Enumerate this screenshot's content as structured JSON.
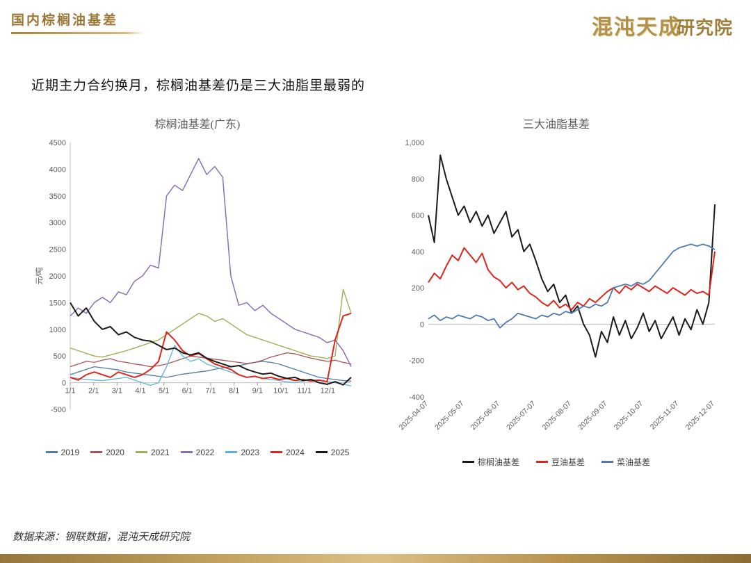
{
  "header": {
    "title": "国内棕榈油基差",
    "logo_main": "混沌天成",
    "logo_sub": "研究院"
  },
  "subtitle": "近期主力合约换月，棕榈油基差仍是三大油脂里最弱的",
  "footer": {
    "source": "数据来源：钢联数据，混沌天成研究院"
  },
  "chart_data": [
    {
      "type": "line",
      "title": "棕榈油基差(广东)",
      "ylabel": "元/吨",
      "ylim": [
        -500,
        4500
      ],
      "ytick_step": 500,
      "comma": false,
      "grid": false,
      "y_axis_line": true,
      "rotate_labels": false,
      "label_span": 0.9167,
      "legend_position": "bottom",
      "x_labels": [
        "1/1",
        "2/1",
        "3/1",
        "4/1",
        "5/1",
        "6/1",
        "7/1",
        "8/1",
        "9/1",
        "10/1",
        "11/1",
        "12/1"
      ],
      "series": [
        {
          "name": "2019",
          "color": "#4f7aa6",
          "width": 1.3,
          "values": [
            150,
            200,
            250,
            300,
            280,
            260,
            240,
            200,
            180,
            160,
            140,
            120,
            100,
            130,
            160,
            180,
            200,
            220,
            250,
            280,
            300,
            320,
            350,
            380,
            400,
            380,
            350,
            300,
            250,
            200,
            150,
            100,
            80,
            60,
            40,
            30
          ]
        },
        {
          "name": "2020",
          "color": "#a85454",
          "width": 1.3,
          "values": [
            300,
            350,
            400,
            380,
            420,
            450,
            400,
            380,
            350,
            330,
            300,
            320,
            350,
            400,
            450,
            500,
            480,
            460,
            440,
            420,
            400,
            380,
            360,
            380,
            420,
            480,
            520,
            560,
            540,
            500,
            460,
            430,
            400,
            420,
            380,
            350
          ]
        },
        {
          "name": "2021",
          "color": "#9fae52",
          "width": 1.4,
          "values": [
            650,
            600,
            550,
            500,
            480,
            520,
            560,
            600,
            650,
            700,
            750,
            800,
            900,
            1000,
            1100,
            1200,
            1300,
            1250,
            1150,
            1200,
            1100,
            1000,
            900,
            850,
            800,
            750,
            700,
            650,
            600,
            550,
            500,
            480,
            450,
            500,
            1750,
            1300
          ]
        },
        {
          "name": "2022",
          "color": "#8b6fb3",
          "width": 1.5,
          "values": [
            1250,
            1400,
            1300,
            1500,
            1600,
            1500,
            1700,
            1650,
            1900,
            2000,
            2200,
            2150,
            3500,
            3700,
            3600,
            3900,
            4200,
            3900,
            4050,
            3850,
            2000,
            1450,
            1500,
            1350,
            1450,
            1300,
            1200,
            1100,
            1000,
            950,
            900,
            850,
            750,
            800,
            600,
            300
          ]
        },
        {
          "name": "2023",
          "color": "#5ab4d6",
          "width": 1.3,
          "values": [
            100,
            80,
            60,
            50,
            40,
            60,
            80,
            100,
            50,
            0,
            -50,
            0,
            300,
            700,
            500,
            400,
            450,
            350,
            300,
            250,
            200,
            150,
            100,
            120,
            80,
            60,
            40,
            20,
            0,
            30,
            60,
            40,
            20,
            0,
            -30,
            -60
          ]
        },
        {
          "name": "2024",
          "color": "#e0241c",
          "width": 2,
          "values": [
            100,
            50,
            150,
            200,
            150,
            100,
            200,
            150,
            100,
            150,
            250,
            400,
            950,
            800,
            600,
            500,
            550,
            450,
            350,
            300,
            250,
            150,
            100,
            120,
            80,
            100,
            60,
            80,
            40,
            60,
            30,
            50,
            20,
            800,
            1250,
            1300
          ]
        },
        {
          "name": "2025",
          "color": "#1a1a1a",
          "width": 2,
          "values": [
            1500,
            1250,
            1400,
            1150,
            1000,
            1050,
            900,
            950,
            850,
            800,
            780,
            700,
            620,
            650,
            560,
            520,
            560,
            460,
            400,
            350,
            300,
            320,
            250,
            200,
            160,
            180,
            120,
            80,
            100,
            40,
            60,
            0,
            -30,
            20,
            -40,
            100
          ]
        }
      ]
    },
    {
      "type": "line",
      "title": "三大油脂基差",
      "ylabel": "",
      "ylim": [
        -400,
        1000
      ],
      "ytick_step": 200,
      "comma": true,
      "grid": false,
      "y_axis_line": false,
      "rotate_labels": true,
      "label_span": 1,
      "legend_position": "bottom",
      "x_labels": [
        "2025-04-07",
        "2025-05-07",
        "2025-06-07",
        "2025-07-07",
        "2025-08-07",
        "2025-09-07",
        "2025-10-07",
        "2025-11-07",
        "2025-12-07"
      ],
      "series": [
        {
          "name": "棕榈油基差",
          "color": "#1a1a1a",
          "width": 2,
          "values": [
            600,
            450,
            930,
            800,
            700,
            600,
            650,
            560,
            620,
            540,
            600,
            500,
            560,
            620,
            480,
            520,
            400,
            440,
            350,
            250,
            180,
            220,
            120,
            160,
            60,
            100,
            0,
            -60,
            -180,
            -40,
            -100,
            40,
            -60,
            20,
            -80,
            -20,
            60,
            -40,
            20,
            -80,
            -20,
            40,
            -60,
            30,
            -30,
            80,
            0,
            120,
            660
          ]
        },
        {
          "name": "豆油基差",
          "color": "#e0241c",
          "width": 2,
          "values": [
            230,
            280,
            250,
            320,
            380,
            350,
            420,
            380,
            340,
            390,
            300,
            260,
            240,
            200,
            230,
            190,
            210,
            170,
            150,
            120,
            100,
            130,
            90,
            110,
            80,
            120,
            100,
            140,
            120,
            150,
            180,
            200,
            170,
            210,
            190,
            220,
            200,
            180,
            210,
            190,
            170,
            200,
            180,
            160,
            190,
            170,
            180,
            160,
            400
          ]
        },
        {
          "name": "菜油基差",
          "color": "#4f7ab0",
          "width": 1.8,
          "values": [
            30,
            50,
            20,
            40,
            30,
            50,
            40,
            30,
            50,
            40,
            20,
            30,
            -20,
            10,
            30,
            60,
            50,
            40,
            30,
            50,
            40,
            60,
            50,
            70,
            60,
            80,
            100,
            90,
            110,
            100,
            120,
            200,
            210,
            220,
            210,
            230,
            220,
            240,
            280,
            320,
            360,
            400,
            420,
            430,
            440,
            430,
            440,
            430,
            410
          ]
        }
      ]
    }
  ]
}
